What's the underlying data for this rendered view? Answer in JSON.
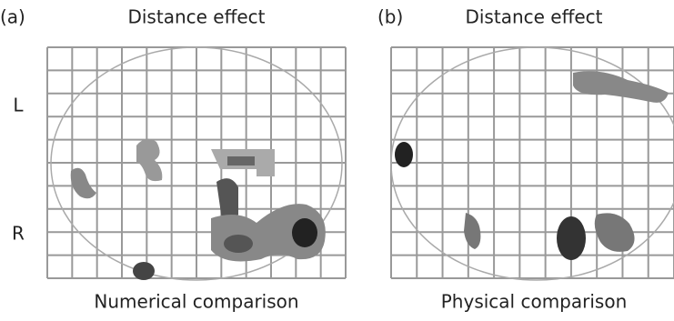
{
  "panels": [
    {
      "label": "(a)",
      "title": "Distance effect",
      "caption": "Numerical comparison"
    },
    {
      "label": "(b)",
      "title": "Distance effect",
      "caption": "Physical comparison"
    }
  ],
  "side_labels": {
    "top": "L",
    "bottom": "R"
  }
}
